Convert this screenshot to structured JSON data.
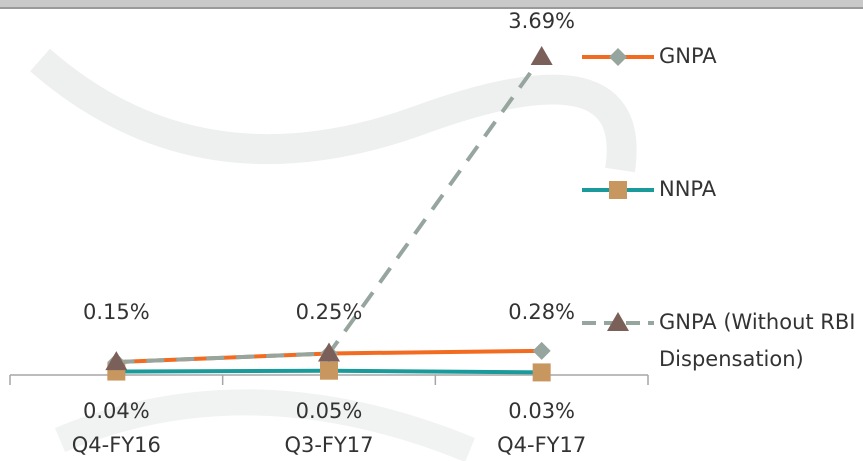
{
  "chart_data": {
    "type": "line",
    "categories": [
      "Q4-FY16",
      "Q3-FY17",
      "Q4-FY17"
    ],
    "series": [
      {
        "name": "GNPA",
        "color": "#f26b21",
        "marker": "diamond",
        "marker_color": "#96a59d",
        "values": [
          0.15,
          0.25,
          0.28
        ],
        "value_labels": [
          "0.15%",
          "0.25%",
          "0.28%"
        ]
      },
      {
        "name": "NNPA",
        "color": "#1a9a9a",
        "marker": "square",
        "marker_color": "#c8965f",
        "values": [
          0.04,
          0.05,
          0.03
        ],
        "value_labels": [
          "0.04%",
          "0.05%",
          "0.03%"
        ]
      },
      {
        "name": "GNPA (Without RBI Dispensation)",
        "color": "#96a59d",
        "dashed": true,
        "marker": "triangle",
        "marker_color": "#7a6058",
        "values": [
          0.15,
          0.25,
          3.69
        ],
        "value_labels": [
          null,
          null,
          "3.69%"
        ]
      }
    ]
  }
}
